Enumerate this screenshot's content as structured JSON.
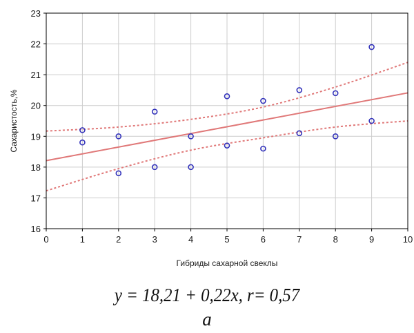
{
  "chart_data": {
    "type": "scatter",
    "xlabel": "Гибриды сахарной свеклы",
    "ylabel": "Сахаристость,%",
    "xlim": [
      0,
      10
    ],
    "ylim": [
      16,
      23
    ],
    "xticks": [
      0,
      1,
      2,
      3,
      4,
      5,
      6,
      7,
      8,
      9,
      10
    ],
    "yticks": [
      16,
      17,
      18,
      19,
      20,
      21,
      22,
      23
    ],
    "grid": true,
    "points": [
      {
        "x": 1,
        "y": 19.2
      },
      {
        "x": 1,
        "y": 18.8
      },
      {
        "x": 2,
        "y": 19.0
      },
      {
        "x": 2,
        "y": 17.8
      },
      {
        "x": 3,
        "y": 19.8
      },
      {
        "x": 3,
        "y": 18.0
      },
      {
        "x": 4,
        "y": 19.0
      },
      {
        "x": 4,
        "y": 18.0
      },
      {
        "x": 5,
        "y": 20.3
      },
      {
        "x": 5,
        "y": 18.7
      },
      {
        "x": 6,
        "y": 20.15
      },
      {
        "x": 6,
        "y": 18.6
      },
      {
        "x": 7,
        "y": 20.5
      },
      {
        "x": 7,
        "y": 19.1
      },
      {
        "x": 8,
        "y": 20.4
      },
      {
        "x": 8,
        "y": 19.0
      },
      {
        "x": 9,
        "y": 21.9
      },
      {
        "x": 9,
        "y": 19.5
      }
    ],
    "regression": {
      "intercept": 18.21,
      "slope": 0.22
    },
    "confidence_upper": [
      {
        "x": 0,
        "y": 19.17
      },
      {
        "x": 2,
        "y": 19.3
      },
      {
        "x": 4,
        "y": 19.55
      },
      {
        "x": 6,
        "y": 19.95
      },
      {
        "x": 8,
        "y": 20.6
      },
      {
        "x": 10,
        "y": 21.4
      }
    ],
    "confidence_lower": [
      {
        "x": 0,
        "y": 17.23
      },
      {
        "x": 2,
        "y": 17.95
      },
      {
        "x": 4,
        "y": 18.55
      },
      {
        "x": 6,
        "y": 18.95
      },
      {
        "x": 8,
        "y": 19.3
      },
      {
        "x": 10,
        "y": 19.5
      }
    ],
    "colors": {
      "points": "#3333bb",
      "line": "#e07878",
      "grid": "#cccccc",
      "axis": "#000000"
    }
  },
  "caption": {
    "equation": "y = 18,21 + 0,22x, r= 0,57",
    "panel_label": "a"
  }
}
